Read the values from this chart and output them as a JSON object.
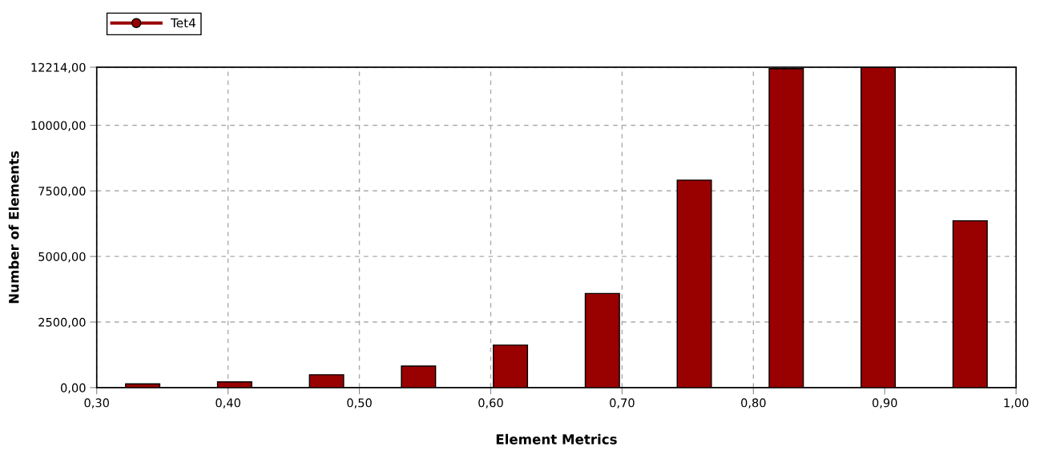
{
  "chart_data": {
    "type": "bar",
    "xlabel": "Element Metrics",
    "ylabel": "Number of Elements",
    "x": [
      0.335,
      0.405,
      0.475,
      0.545,
      0.615,
      0.685,
      0.755,
      0.825,
      0.895,
      0.965
    ],
    "series": [
      {
        "name": "Tet4",
        "color": "#990000",
        "values": [
          140,
          220,
          490,
          820,
          1620,
          3590,
          7910,
          12160,
          12214,
          6360
        ]
      }
    ],
    "xlim": [
      0.3,
      1.0
    ],
    "xticks": [
      {
        "value": 0.3,
        "label": "0,30"
      },
      {
        "value": 0.4,
        "label": "0,40"
      },
      {
        "value": 0.5,
        "label": "0,50"
      },
      {
        "value": 0.6,
        "label": "0,60"
      },
      {
        "value": 0.7,
        "label": "0,70"
      },
      {
        "value": 0.8,
        "label": "0,80"
      },
      {
        "value": 0.9,
        "label": "0,90"
      },
      {
        "value": 1.0,
        "label": "1,00"
      }
    ],
    "ylim": [
      0,
      12214
    ],
    "yticks": [
      {
        "value": 0,
        "label": "0,00"
      },
      {
        "value": 2500,
        "label": "2500,00"
      },
      {
        "value": 5000,
        "label": "5000,00"
      },
      {
        "value": 7500,
        "label": "7500,00"
      },
      {
        "value": 10000,
        "label": "10000,00"
      },
      {
        "value": 12214,
        "label": "12214,00"
      }
    ],
    "grid": true,
    "legend": "top left",
    "marker": "circle"
  }
}
